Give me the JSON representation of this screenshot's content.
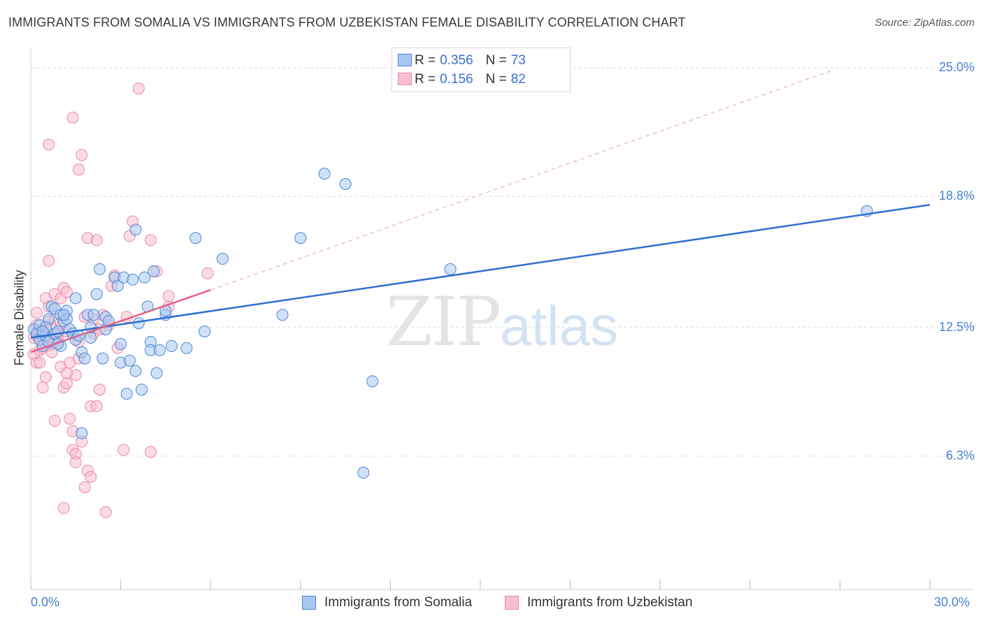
{
  "title": "IMMIGRANTS FROM SOMALIA VS IMMIGRANTS FROM UZBEKISTAN FEMALE DISABILITY CORRELATION CHART",
  "source": "Source: ZipAtlas.com",
  "watermark": {
    "zip": "ZIP",
    "atlas": "atlas"
  },
  "legend": {
    "r_label": "R =",
    "n_label": "N =",
    "somalia": {
      "r": "0.356",
      "n": "73"
    },
    "uzbekistan": {
      "r": "0.156",
      "n": "82"
    }
  },
  "colors": {
    "somalia_fill": "#a9c8f0",
    "somalia_stroke": "#4a86d8",
    "somalia_line": "#2f6fd0",
    "uzbekistan_fill": "#f7bfd0",
    "uzbekistan_stroke": "#e88aa8",
    "uzbekistan_line": "#e0608a",
    "tick_text": "#4a7fd0",
    "grid": "#dddddd"
  },
  "chart_data": {
    "type": "scatter",
    "title": "IMMIGRANTS FROM SOMALIA VS IMMIGRANTS FROM UZBEKISTAN FEMALE DISABILITY CORRELATION CHART",
    "xlabel": "",
    "ylabel": "Female Disability",
    "xlim": [
      0,
      30
    ],
    "ylim": [
      0,
      26
    ],
    "x_tick_labels": [
      "0.0%",
      "30.0%"
    ],
    "y_ticks": [
      6.3,
      12.5,
      18.8,
      25.0
    ],
    "y_tick_labels": [
      "6.3%",
      "12.5%",
      "18.8%",
      "25.0%"
    ],
    "grid": true,
    "legend_position": "top-center",
    "series": [
      {
        "name": "Immigrants from Somalia",
        "r": 0.356,
        "n": 73,
        "trend": {
          "x": [
            0,
            30
          ],
          "y": [
            12.0,
            18.4
          ]
        },
        "points": [
          [
            0.1,
            12.4
          ],
          [
            0.2,
            12.2
          ],
          [
            0.3,
            11.9
          ],
          [
            0.3,
            12.6
          ],
          [
            0.4,
            11.6
          ],
          [
            0.5,
            12.1
          ],
          [
            0.6,
            11.8
          ],
          [
            0.6,
            12.9
          ],
          [
            0.7,
            13.5
          ],
          [
            0.8,
            13.4
          ],
          [
            0.8,
            12.2
          ],
          [
            0.9,
            12.3
          ],
          [
            1.0,
            11.6
          ],
          [
            1.0,
            13.1
          ],
          [
            1.1,
            12.8
          ],
          [
            1.2,
            13.3
          ],
          [
            1.3,
            12.4
          ],
          [
            1.4,
            12.2
          ],
          [
            1.5,
            11.9
          ],
          [
            1.5,
            13.9
          ],
          [
            1.7,
            11.3
          ],
          [
            1.8,
            11.0
          ],
          [
            1.9,
            13.1
          ],
          [
            2.0,
            12.0
          ],
          [
            2.1,
            13.1
          ],
          [
            2.2,
            14.1
          ],
          [
            2.3,
            15.3
          ],
          [
            2.4,
            11.0
          ],
          [
            2.5,
            12.4
          ],
          [
            2.5,
            13.0
          ],
          [
            2.6,
            12.8
          ],
          [
            2.8,
            14.9
          ],
          [
            2.9,
            14.5
          ],
          [
            3.0,
            10.8
          ],
          [
            3.0,
            11.7
          ],
          [
            3.1,
            14.9
          ],
          [
            3.2,
            9.3
          ],
          [
            3.3,
            10.9
          ],
          [
            3.4,
            14.8
          ],
          [
            3.5,
            17.2
          ],
          [
            3.5,
            10.4
          ],
          [
            3.6,
            12.7
          ],
          [
            3.7,
            9.5
          ],
          [
            3.8,
            14.9
          ],
          [
            3.9,
            13.5
          ],
          [
            4.0,
            11.8
          ],
          [
            4.0,
            11.4
          ],
          [
            4.1,
            15.2
          ],
          [
            4.2,
            10.3
          ],
          [
            4.3,
            11.4
          ],
          [
            4.5,
            13.1
          ],
          [
            4.5,
            13.3
          ],
          [
            4.7,
            11.6
          ],
          [
            5.2,
            11.5
          ],
          [
            5.5,
            16.8
          ],
          [
            5.8,
            12.3
          ],
          [
            6.4,
            15.8
          ],
          [
            8.4,
            13.1
          ],
          [
            9.0,
            16.8
          ],
          [
            9.8,
            19.9
          ],
          [
            10.5,
            19.4
          ],
          [
            11.4,
            9.9
          ],
          [
            11.1,
            5.5
          ],
          [
            14.0,
            15.3
          ],
          [
            27.9,
            18.1
          ],
          [
            0.5,
            12.5
          ],
          [
            0.9,
            11.7
          ],
          [
            1.2,
            12.9
          ],
          [
            1.6,
            12.1
          ],
          [
            1.7,
            7.4
          ],
          [
            2.0,
            12.5
          ],
          [
            0.4,
            12.3
          ],
          [
            1.1,
            13.1
          ]
        ]
      },
      {
        "name": "Immigrants from Uzbekistan",
        "r": 0.156,
        "n": 82,
        "trend": {
          "x": [
            0,
            6
          ],
          "y": [
            11.3,
            14.3
          ]
        },
        "trend_extended": {
          "x": [
            6,
            26.8
          ],
          "y": [
            14.3,
            24.9
          ]
        },
        "points": [
          [
            0.1,
            11.2
          ],
          [
            0.1,
            12.0
          ],
          [
            0.2,
            10.8
          ],
          [
            0.2,
            12.6
          ],
          [
            0.2,
            13.2
          ],
          [
            0.3,
            11.4
          ],
          [
            0.3,
            12.3
          ],
          [
            0.4,
            11.5
          ],
          [
            0.4,
            9.6
          ],
          [
            0.5,
            10.1
          ],
          [
            0.5,
            12.0
          ],
          [
            0.5,
            13.9
          ],
          [
            0.6,
            11.9
          ],
          [
            0.6,
            12.8
          ],
          [
            0.6,
            15.7
          ],
          [
            0.6,
            21.3
          ],
          [
            0.7,
            11.3
          ],
          [
            0.7,
            12.5
          ],
          [
            0.8,
            14.1
          ],
          [
            0.8,
            8.0
          ],
          [
            0.9,
            11.8
          ],
          [
            0.9,
            12.2
          ],
          [
            1.0,
            10.6
          ],
          [
            1.0,
            13.9
          ],
          [
            1.1,
            9.6
          ],
          [
            1.1,
            14.4
          ],
          [
            1.1,
            3.8
          ],
          [
            1.2,
            9.8
          ],
          [
            1.2,
            12.3
          ],
          [
            1.2,
            14.2
          ],
          [
            1.3,
            8.1
          ],
          [
            1.4,
            22.6
          ],
          [
            1.4,
            7.5
          ],
          [
            1.4,
            6.6
          ],
          [
            1.5,
            10.2
          ],
          [
            1.5,
            6.4
          ],
          [
            1.5,
            6.0
          ],
          [
            1.6,
            11.8
          ],
          [
            1.6,
            20.1
          ],
          [
            1.7,
            7.0
          ],
          [
            1.7,
            20.8
          ],
          [
            1.8,
            4.8
          ],
          [
            1.9,
            16.8
          ],
          [
            1.9,
            5.6
          ],
          [
            2.0,
            5.3
          ],
          [
            2.0,
            8.7
          ],
          [
            2.1,
            12.9
          ],
          [
            2.2,
            8.7
          ],
          [
            2.2,
            16.7
          ],
          [
            2.3,
            9.5
          ],
          [
            2.4,
            13.1
          ],
          [
            2.5,
            3.6
          ],
          [
            2.6,
            12.6
          ],
          [
            2.7,
            14.5
          ],
          [
            2.8,
            15.0
          ],
          [
            2.9,
            11.5
          ],
          [
            3.1,
            6.6
          ],
          [
            3.2,
            13.0
          ],
          [
            3.3,
            16.9
          ],
          [
            3.4,
            17.6
          ],
          [
            3.6,
            24.0
          ],
          [
            4.0,
            6.5
          ],
          [
            4.0,
            16.7
          ],
          [
            4.2,
            15.2
          ],
          [
            4.6,
            13.5
          ],
          [
            4.6,
            14.0
          ],
          [
            5.9,
            15.1
          ],
          [
            0.3,
            10.8
          ],
          [
            0.4,
            12.2
          ],
          [
            0.7,
            11.7
          ],
          [
            0.8,
            12.9
          ],
          [
            0.9,
            12.0
          ],
          [
            1.0,
            12.7
          ],
          [
            1.3,
            10.8
          ],
          [
            1.6,
            11.0
          ],
          [
            1.8,
            13.0
          ],
          [
            2.1,
            12.2
          ],
          [
            2.3,
            12.4
          ],
          [
            0.2,
            12.1
          ],
          [
            0.5,
            11.6
          ],
          [
            1.2,
            10.3
          ],
          [
            0.6,
            13.5
          ]
        ]
      }
    ]
  }
}
